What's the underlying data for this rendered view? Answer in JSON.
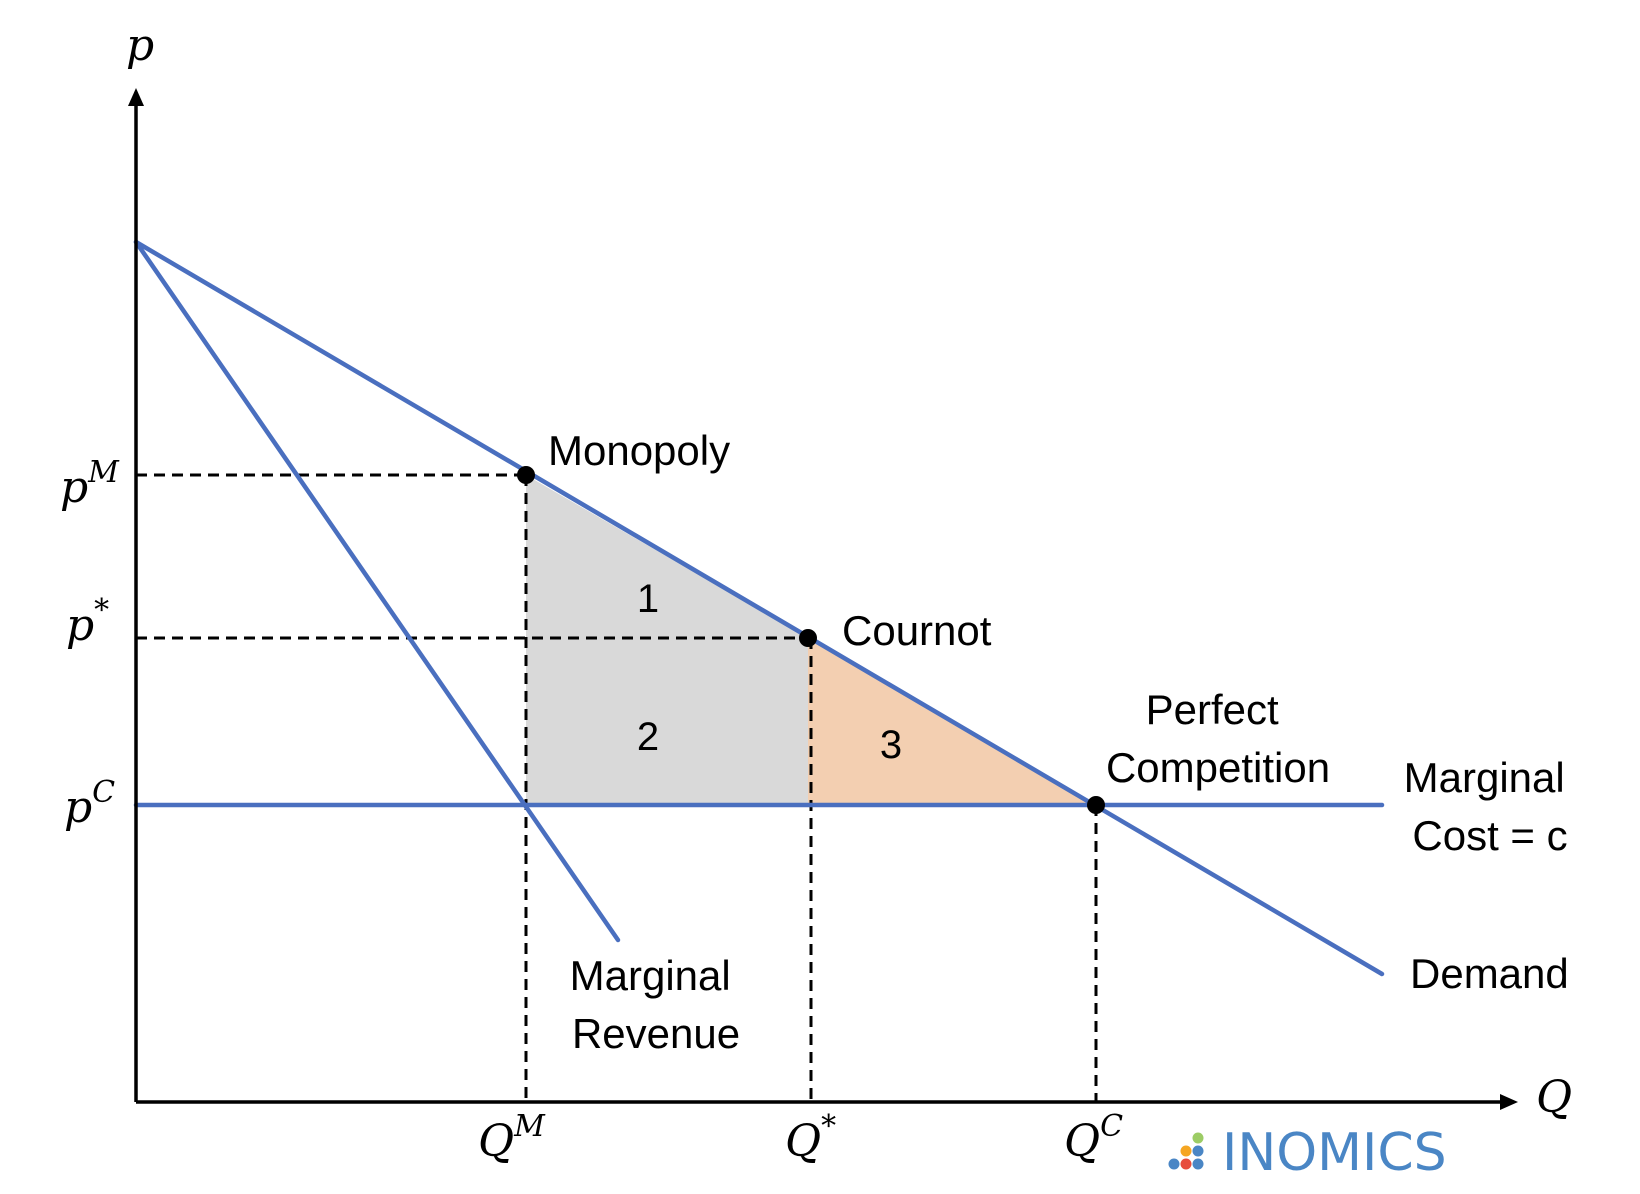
{
  "axes": {
    "y_label": "p",
    "x_label": "Q"
  },
  "price_ticks": {
    "monopoly": {
      "base": "p",
      "sup": "M"
    },
    "cournot": {
      "base": "p",
      "sup": "*"
    },
    "competitive": {
      "base": "p",
      "sup": "C"
    }
  },
  "quantity_ticks": {
    "monopoly": {
      "base": "Q",
      "sup": "M"
    },
    "cournot": {
      "base": "Q",
      "sup": "*"
    },
    "competitive": {
      "base": "Q",
      "sup": "C"
    }
  },
  "points": {
    "monopoly": "Monopoly",
    "cournot": "Cournot",
    "perfect_competition_line1": "Perfect",
    "perfect_competition_line2": "Competition"
  },
  "curves": {
    "demand": "Demand",
    "marginal_revenue_line1": "Marginal",
    "marginal_revenue_line2": "Revenue",
    "marginal_cost_line1": "Marginal",
    "marginal_cost_line2": "Cost = c"
  },
  "regions": {
    "area_1": "1",
    "area_2": "2",
    "area_3": "3"
  },
  "logo": {
    "text": "INOMICS"
  },
  "colors": {
    "curve": "#4a6fbf",
    "region_grey": "#d9d9d9",
    "region_orange": "#f3cfb1",
    "logo_text": "#4a86c5"
  }
}
